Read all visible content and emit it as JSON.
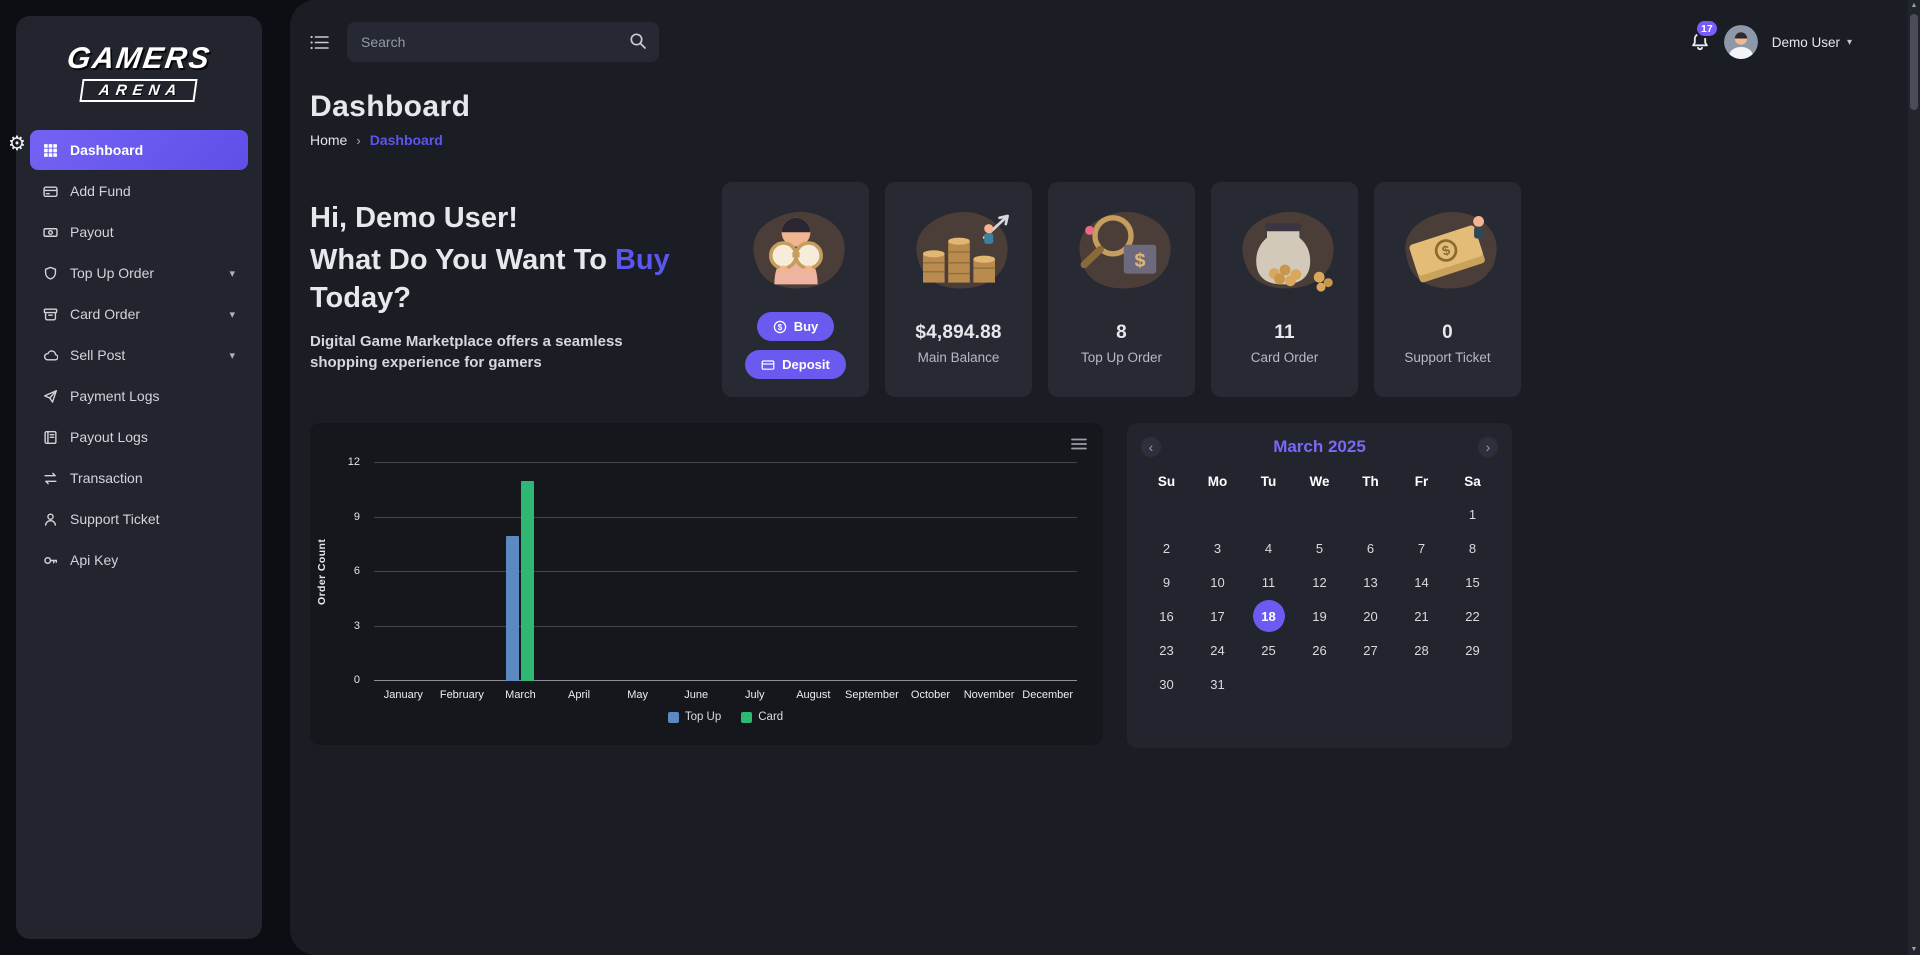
{
  "app": {
    "logo_line1": "GAMERS",
    "logo_line2": "ARENA"
  },
  "topbar": {
    "search_placeholder": "Search",
    "notification_count": "17",
    "user_name": "Demo User"
  },
  "sidebar": {
    "items": [
      {
        "label": "Dashboard",
        "icon": "grid-icon",
        "active": true,
        "expandable": false
      },
      {
        "label": "Add Fund",
        "icon": "card-icon",
        "active": false,
        "expandable": false
      },
      {
        "label": "Payout",
        "icon": "banknote-icon",
        "active": false,
        "expandable": false
      },
      {
        "label": "Top Up Order",
        "icon": "shield-icon",
        "active": false,
        "expandable": true
      },
      {
        "label": "Card Order",
        "icon": "box-icon",
        "active": false,
        "expandable": true
      },
      {
        "label": "Sell Post",
        "icon": "cloud-icon",
        "active": false,
        "expandable": true
      },
      {
        "label": "Payment Logs",
        "icon": "paper-plane-icon",
        "active": false,
        "expandable": false
      },
      {
        "label": "Payout Logs",
        "icon": "ledger-icon",
        "active": false,
        "expandable": false
      },
      {
        "label": "Transaction",
        "icon": "swap-arrows-icon",
        "active": false,
        "expandable": false
      },
      {
        "label": "Support Ticket",
        "icon": "person-icon",
        "active": false,
        "expandable": false
      },
      {
        "label": "Api Key",
        "icon": "key-icon",
        "active": false,
        "expandable": false
      }
    ]
  },
  "page": {
    "title": "Dashboard",
    "breadcrumb_home": "Home",
    "breadcrumb_current": "Dashboard"
  },
  "greeting": {
    "line1": "Hi, Demo User!",
    "line2_prefix": "What Do You Want To ",
    "line2_accent": "Buy",
    "line2_suffix": " Today?",
    "subtitle": "Digital Game Marketplace offers a seamless shopping experience for gamers"
  },
  "stats": {
    "buy_label": "Buy",
    "deposit_label": "Deposit",
    "cards": [
      {
        "value": "$4,894.88",
        "label": "Main Balance"
      },
      {
        "value": "8",
        "label": "Top Up Order"
      },
      {
        "value": "11",
        "label": "Card Order"
      },
      {
        "value": "0",
        "label": "Support Ticket"
      }
    ]
  },
  "chart_data": {
    "type": "bar",
    "title": "",
    "categories": [
      "January",
      "February",
      "March",
      "April",
      "May",
      "June",
      "July",
      "August",
      "September",
      "October",
      "November",
      "December"
    ],
    "series": [
      {
        "name": "Top Up",
        "color": "#5b8ac0",
        "values": [
          0,
          0,
          8,
          0,
          0,
          0,
          0,
          0,
          0,
          0,
          0,
          0
        ]
      },
      {
        "name": "Card",
        "color": "#2eb873",
        "values": [
          0,
          0,
          11,
          0,
          0,
          0,
          0,
          0,
          0,
          0,
          0,
          0
        ]
      }
    ],
    "ylabel": "Order Count",
    "yticks": [
      0,
      3,
      6,
      9,
      12
    ],
    "ylim": [
      0,
      12
    ],
    "grid": true,
    "legend_position": "bottom"
  },
  "calendar": {
    "title": "March 2025",
    "day_headers": [
      "Su",
      "Mo",
      "Tu",
      "We",
      "Th",
      "Fr",
      "Sa"
    ],
    "weeks": [
      [
        "",
        "",
        "",
        "",
        "",
        "",
        "1"
      ],
      [
        "2",
        "3",
        "4",
        "5",
        "6",
        "7",
        "8"
      ],
      [
        "9",
        "10",
        "11",
        "12",
        "13",
        "14",
        "15"
      ],
      [
        "16",
        "17",
        "18",
        "19",
        "20",
        "21",
        "22"
      ],
      [
        "23",
        "24",
        "25",
        "26",
        "27",
        "28",
        "29"
      ],
      [
        "30",
        "31",
        "",
        "",
        "",
        "",
        ""
      ]
    ],
    "selected_date": "18"
  },
  "colors": {
    "accent": "#6c5bf2",
    "topup_bar": "#5b8ac0",
    "card_bar": "#2eb873"
  }
}
